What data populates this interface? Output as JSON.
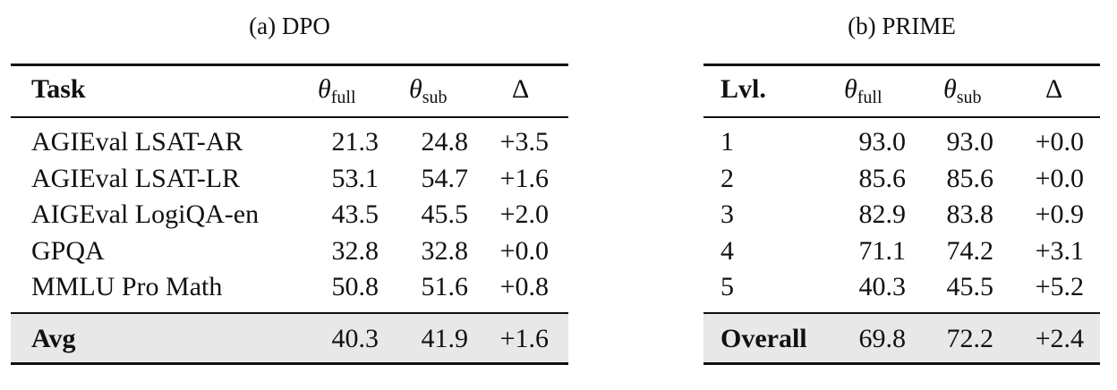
{
  "dpo": {
    "caption": "(a) DPO",
    "header": {
      "task": "Task",
      "theta": "θ",
      "full": "full",
      "sub": "sub",
      "delta": "Δ"
    },
    "rows": [
      {
        "task": "AGIEval LSAT-AR",
        "full": "21.3",
        "sub": "24.8",
        "delta": "+3.5"
      },
      {
        "task": "AGIEval LSAT-LR",
        "full": "53.1",
        "sub": "54.7",
        "delta": "+1.6"
      },
      {
        "task": "AIGEval LogiQA-en",
        "full": "43.5",
        "sub": "45.5",
        "delta": "+2.0"
      },
      {
        "task": "GPQA",
        "full": "32.8",
        "sub": "32.8",
        "delta": "+0.0"
      },
      {
        "task": "MMLU Pro Math",
        "full": "50.8",
        "sub": "51.6",
        "delta": "+0.8"
      }
    ],
    "summary": {
      "task": "Avg",
      "full": "40.3",
      "sub": "41.9",
      "delta": "+1.6"
    }
  },
  "prime": {
    "caption": "(b) PRIME",
    "header": {
      "task": "Lvl.",
      "theta": "θ",
      "full": "full",
      "sub": "sub",
      "delta": "Δ"
    },
    "rows": [
      {
        "task": "1",
        "full": "93.0",
        "sub": "93.0",
        "delta": "+0.0"
      },
      {
        "task": "2",
        "full": "85.6",
        "sub": "85.6",
        "delta": "+0.0"
      },
      {
        "task": "3",
        "full": "82.9",
        "sub": "83.8",
        "delta": "+0.9"
      },
      {
        "task": "4",
        "full": "71.1",
        "sub": "74.2",
        "delta": "+3.1"
      },
      {
        "task": "5",
        "full": "40.3",
        "sub": "45.5",
        "delta": "+5.2"
      }
    ],
    "summary": {
      "task": "Overall",
      "full": "69.8",
      "sub": "72.2",
      "delta": "+2.4"
    }
  }
}
